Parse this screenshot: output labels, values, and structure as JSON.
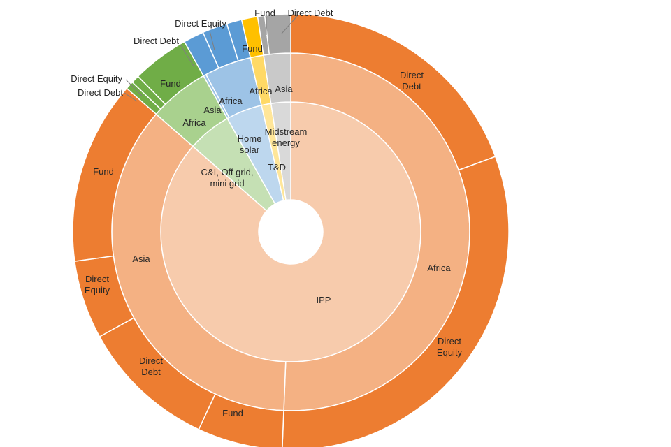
{
  "chart_data": {
    "type": "sunburst",
    "title": "",
    "rings": [
      {
        "level": "type",
        "segments": [
          {
            "label": "IPP",
            "value": 86.44,
            "color": "#F7CBAC"
          },
          {
            "label": "C&I, Off grid, mini grid",
            "value": 5.45,
            "color": "#C5E0B4"
          },
          {
            "label": "Home solar",
            "value": 4.49,
            "color": "#BDD7EE"
          },
          {
            "label": "T&D",
            "value": 1.19,
            "color": "#FFE699"
          },
          {
            "label": "Midstream energy",
            "value": 2.43,
            "color": "#D9D9D9"
          }
        ]
      },
      {
        "level": "region",
        "segments": [
          {
            "label": "Africa",
            "value": 50.62,
            "color": "#F4B183"
          },
          {
            "label": "Asia",
            "value": 35.82,
            "color": "#F4B183"
          },
          {
            "label": "Africa",
            "value": 5.45,
            "color": "#A9D18E"
          },
          {
            "label": "Asia",
            "value": 0.25,
            "color": "#9DC3E6"
          },
          {
            "label": "Africa",
            "value": 4.24,
            "color": "#9DC3E6"
          },
          {
            "label": "Africa",
            "value": 1.19,
            "color": "#FFD966"
          },
          {
            "label": "Asia",
            "value": 2.43,
            "color": "#C9C9C9"
          }
        ]
      },
      {
        "level": "instrument",
        "segments": [
          {
            "label": "Direct Debt",
            "value": 19.38,
            "color": "#ED7D31"
          },
          {
            "label": "Direct Equity",
            "value": 31.24,
            "color": "#ED7D31"
          },
          {
            "label": "Fund",
            "value": 6.31,
            "color": "#ED7D31"
          },
          {
            "label": "Direct Debt",
            "value": 10.08,
            "color": "#ED7D31"
          },
          {
            "label": "Direct Equity",
            "value": 5.83,
            "color": "#ED7D31"
          },
          {
            "label": "Fund",
            "value": 13.6,
            "color": "#ED7D31"
          },
          {
            "label": "Direct Debt",
            "value": 0.6,
            "color": "#70AD47"
          },
          {
            "label": "Direct Equity",
            "value": 0.6,
            "color": "#70AD47"
          },
          {
            "label": "Fund",
            "value": 4.24,
            "color": "#70AD47"
          },
          {
            "label": "Direct Debt",
            "value": 1.52,
            "color": "#5B9BD5"
          },
          {
            "label": "Direct Equity",
            "value": 1.85,
            "color": "#5B9BD5"
          },
          {
            "label": "",
            "value": 1.12,
            "color": "#5B9BD5"
          },
          {
            "label": "Fund",
            "value": 1.19,
            "color": "#FFC000"
          },
          {
            "label": "Fund",
            "value": 0.52,
            "color": "#A5A5A5"
          },
          {
            "label": "Direct Debt",
            "value": 1.91,
            "color": "#A5A5A5"
          }
        ]
      }
    ],
    "legend": "none"
  }
}
